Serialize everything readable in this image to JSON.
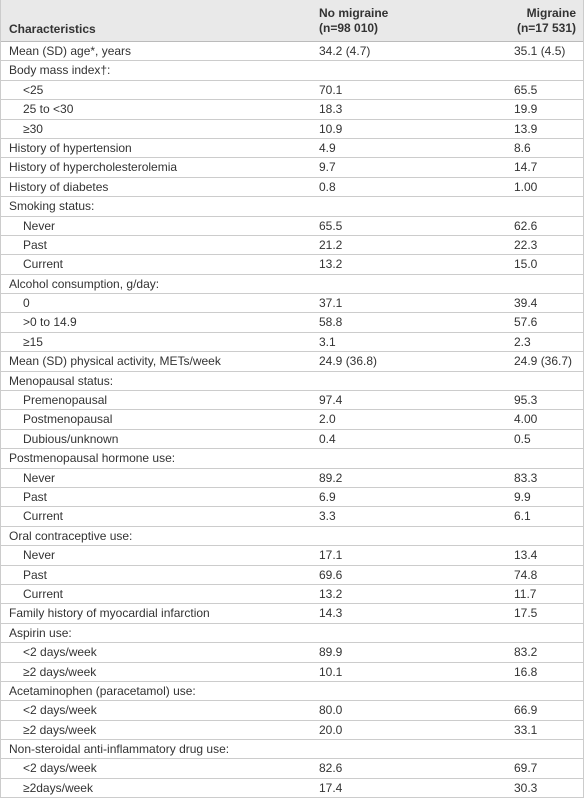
{
  "header": {
    "characteristics": "Characteristics",
    "no_migraine": [
      "No migraine",
      "(n=98 010)"
    ],
    "migraine": [
      "Migraine",
      "(n=17 531)"
    ]
  },
  "rows": [
    [
      "Mean (SD) age*, years",
      "34.2 (4.7)",
      "35.1 (4.5)"
    ],
    {
      "label": "Body mass index†:",
      "rows": [
        [
          "<25",
          "70.1",
          "65.5"
        ],
        [
          "25 to <30",
          "18.3",
          "19.9"
        ],
        [
          "≥30",
          "10.9",
          "13.9"
        ]
      ]
    },
    [
      "History of hypertension",
      "4.9",
      "8.6"
    ],
    [
      "History of hypercholesterolemia",
      "9.7",
      "14.7"
    ],
    [
      "History of diabetes",
      "0.8",
      "1.00"
    ],
    {
      "label": "Smoking status:",
      "rows": [
        [
          "Never",
          "65.5",
          "62.6"
        ],
        [
          "Past",
          "21.2",
          "22.3"
        ],
        [
          "Current",
          "13.2",
          "15.0"
        ]
      ]
    },
    {
      "label": "Alcohol consumption, g/day:",
      "rows": [
        [
          "0",
          "37.1",
          "39.4"
        ],
        [
          ">0 to 14.9",
          "58.8",
          "57.6"
        ],
        [
          "≥15",
          "3.1",
          "2.3"
        ]
      ]
    },
    [
      "Mean (SD) physical activity, METs/week",
      "24.9 (36.8)",
      "24.9 (36.7)"
    ],
    {
      "label": "Menopausal status:",
      "rows": [
        [
          "Premenopausal",
          "97.4",
          "95.3"
        ],
        [
          "Postmenopausal",
          "2.0",
          "4.00"
        ],
        [
          "Dubious/unknown",
          "0.4",
          "0.5"
        ]
      ]
    },
    {
      "label": "Postmenopausal hormone use:",
      "rows": [
        [
          "Never",
          "89.2",
          "83.3"
        ],
        [
          "Past",
          "6.9",
          "9.9"
        ],
        [
          "Current",
          "3.3",
          "6.1"
        ]
      ]
    },
    {
      "label": "Oral contraceptive use:",
      "rows": [
        [
          "Never",
          "17.1",
          "13.4"
        ],
        [
          "Past",
          "69.6",
          "74.8"
        ],
        [
          "Current",
          "13.2",
          "11.7"
        ]
      ]
    },
    [
      "Family history of myocardial infarction",
      "14.3",
      "17.5"
    ],
    {
      "label": "Aspirin use:",
      "rows": [
        [
          "<2 days/week",
          "89.9",
          "83.2"
        ],
        [
          "≥2 days/week",
          "10.1",
          "16.8"
        ]
      ]
    },
    {
      "label": "Acetaminophen (paracetamol) use:",
      "rows": [
        [
          "<2 days/week",
          "80.0",
          "66.9"
        ],
        [
          "≥2 days/week",
          "20.0",
          "33.1"
        ]
      ]
    },
    {
      "label": "Non-steroidal anti-inflammatory drug use:",
      "rows": [
        [
          "<2 days/week",
          "82.6",
          "69.7"
        ],
        [
          "≥2days/week",
          "17.4",
          "30.3"
        ]
      ]
    }
  ]
}
